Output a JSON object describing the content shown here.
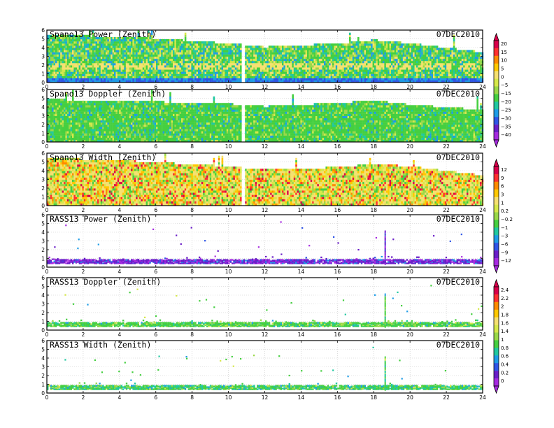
{
  "chart_data": [
    {
      "type": "heatmap",
      "title": "Spano13 Power (Zenith)",
      "date": "07DEC2010",
      "x_ticks": [
        "0",
        "2",
        "4",
        "6",
        "8",
        "10",
        "12",
        "14",
        "16",
        "18",
        "20",
        "22",
        "24"
      ],
      "y_ticks": [
        "0",
        "1",
        "2",
        "3",
        "4",
        "5",
        "6"
      ],
      "xlim": [
        0,
        24
      ],
      "ylim": [
        0,
        6
      ],
      "data_gap_hours": [
        10.7,
        10.85
      ],
      "dominant": "mixed",
      "colorbar": 0,
      "top_height_by_hour": [
        [
          0,
          5.6
        ],
        [
          5,
          5.3
        ],
        [
          10,
          4.6
        ],
        [
          12,
          4.2
        ],
        [
          16,
          4.6
        ],
        [
          18,
          5.0
        ],
        [
          20,
          4.6
        ],
        [
          24,
          3.6
        ]
      ]
    },
    {
      "type": "heatmap",
      "title": "Spano13 Doppler (Zenith)",
      "date": "07DEC2010",
      "x_ticks": [
        "0",
        "2",
        "4",
        "6",
        "8",
        "10",
        "12",
        "14",
        "16",
        "18",
        "20",
        "22",
        "24"
      ],
      "y_ticks": [
        "0",
        "1",
        "2",
        "3",
        "4",
        "5",
        "6"
      ],
      "xlim": [
        0,
        24
      ],
      "ylim": [
        0,
        6
      ],
      "data_gap_hours": [
        10.7,
        10.85
      ],
      "dominant": "green",
      "colorbar": 0,
      "top_height_by_hour": [
        [
          0,
          5.0
        ],
        [
          5,
          4.8
        ],
        [
          10,
          4.5
        ],
        [
          12,
          4.2
        ],
        [
          16,
          4.6
        ],
        [
          18,
          4.9
        ],
        [
          20,
          4.4
        ],
        [
          24,
          3.8
        ]
      ]
    },
    {
      "type": "heatmap",
      "title": "Spano13 Width (Zenith)",
      "date": "07DEC2010",
      "x_ticks": [
        "0",
        "2",
        "4",
        "6",
        "8",
        "10",
        "12",
        "14",
        "16",
        "18",
        "20",
        "22",
        "24"
      ],
      "y_ticks": [
        "0",
        "1",
        "2",
        "3",
        "4",
        "5",
        "6"
      ],
      "xlim": [
        0,
        24
      ],
      "ylim": [
        0,
        6
      ],
      "data_gap_hours": [
        10.7,
        10.85
      ],
      "dominant": "warm",
      "colorbar": 1,
      "top_height_by_hour": [
        [
          0,
          5.6
        ],
        [
          5,
          5.2
        ],
        [
          10,
          4.6
        ],
        [
          12,
          4.3
        ],
        [
          16,
          4.5
        ],
        [
          18,
          4.9
        ],
        [
          20,
          4.6
        ],
        [
          24,
          3.6
        ]
      ]
    },
    {
      "type": "heatmap",
      "title": "RASS13 Power (Zenith)",
      "date": "07DEC2010",
      "x_ticks": [
        "0",
        "2",
        "4",
        "6",
        "8",
        "10",
        "12",
        "14",
        "16",
        "18",
        "20",
        "22",
        "24"
      ],
      "y_ticks": [
        "0",
        "1",
        "2",
        "3",
        "4",
        "5",
        "6"
      ],
      "xlim": [
        0,
        24
      ],
      "ylim": [
        0,
        6
      ],
      "data_band": [
        0.45,
        0.9
      ],
      "spike_hour": 18.6,
      "dominant": "purple",
      "colorbar": 1
    },
    {
      "type": "heatmap",
      "title": "RASS13 Doppler (Zenith)",
      "date": "07DEC2010",
      "x_ticks": [
        "0",
        "2",
        "4",
        "6",
        "8",
        "10",
        "12",
        "14",
        "16",
        "18",
        "20",
        "22",
        "24"
      ],
      "y_ticks": [
        "0",
        "1",
        "2",
        "3",
        "4",
        "5",
        "6"
      ],
      "xlim": [
        0,
        24
      ],
      "ylim": [
        0,
        6
      ],
      "data_band": [
        0.45,
        0.85
      ],
      "spike_hour": 18.6,
      "dominant": "green",
      "colorbar": 2
    },
    {
      "type": "heatmap",
      "title": "RASS13 Width (Zenith)",
      "date": "07DEC2010",
      "x_ticks": [
        "0",
        "2",
        "4",
        "6",
        "8",
        "10",
        "12",
        "14",
        "16",
        "18",
        "20",
        "22",
        "24"
      ],
      "y_ticks": [
        "0",
        "1",
        "2",
        "3",
        "4",
        "5",
        "6"
      ],
      "xlim": [
        0,
        24
      ],
      "ylim": [
        0,
        6
      ],
      "data_band": [
        0.45,
        0.85
      ],
      "spike_hour": 18.6,
      "dominant": "greencyan",
      "colorbar": 2
    }
  ],
  "colorbars": [
    {
      "labels": [
        "20",
        "15",
        "10",
        "5",
        "0",
        "−5",
        "−15",
        "−20",
        "−25",
        "−30",
        "−35",
        "−40"
      ]
    },
    {
      "labels": [
        "12",
        "9",
        "6",
        "3",
        "1",
        "0.2",
        "−0.2",
        "−1",
        "−3",
        "−6",
        "−9",
        "−12"
      ]
    },
    {
      "labels": [
        "2.4",
        "2.2",
        "2",
        "1.8",
        "1.6",
        "1.4",
        "1",
        "0.8",
        "0.6",
        "0.4",
        "0.2",
        "0"
      ]
    }
  ],
  "colors": {
    "scale": [
      "#d8004a",
      "#ff3030",
      "#ff8a00",
      "#ffc800",
      "#f5e070",
      "#d6e84a",
      "#9ad848",
      "#45cf40",
      "#20c8a0",
      "#1e9ce6",
      "#2f55e6",
      "#6a1ec8",
      "#a62ae0"
    ]
  }
}
